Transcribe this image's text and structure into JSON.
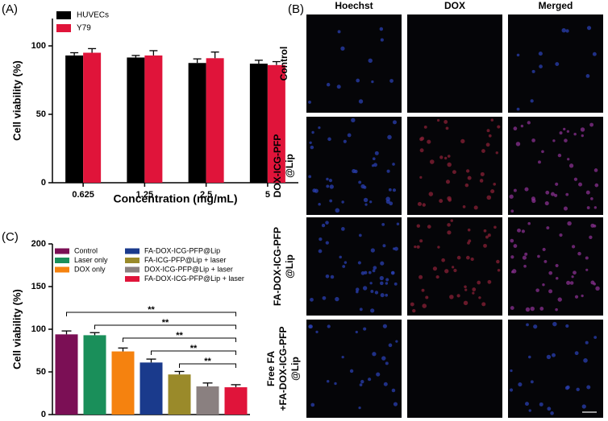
{
  "chart_data": [
    {
      "type": "grouped-bar",
      "panel_label": "(A)",
      "xlabel": "Concentration (mg/mL)",
      "ylabel": "Cell viability (%)",
      "categories": [
        "0.625",
        "1.25",
        "2.5",
        "5"
      ],
      "series": [
        {
          "name": "HUVECs",
          "color": "#000000",
          "values": [
            93,
            91.5,
            87.5,
            87
          ],
          "errors": [
            2,
            1.5,
            3,
            2.5
          ]
        },
        {
          "name": "Y79",
          "color": "#e0143a",
          "values": [
            95,
            93,
            91,
            86
          ],
          "errors": [
            3,
            3.5,
            4.5,
            2.5
          ]
        }
      ],
      "ylim": [
        0,
        120
      ],
      "yticks": [
        0,
        50,
        100
      ],
      "legend": "top-left"
    },
    {
      "type": "bar",
      "panel_label": "(C)",
      "ylabel": "Cell viability (%)",
      "categories": [
        "Control",
        "Laser only",
        "DOX only",
        "FA-DOX-ICG-PFP@Lip",
        "FA-ICG-PFP@Lip + laser",
        "DOX-ICG-PFP@Lip + laser",
        "FA-DOX-ICG-PFP@Lip + laser"
      ],
      "colors": [
        "#7b0f55",
        "#1a8f5a",
        "#f5820f",
        "#1a3a8c",
        "#9a8a2a",
        "#8a8080",
        "#e0143a"
      ],
      "values": [
        94,
        93,
        74,
        61,
        47,
        33,
        32
      ],
      "errors": [
        4,
        3,
        4,
        4,
        3.5,
        4,
        3
      ],
      "ylim": [
        0,
        200
      ],
      "yticks": [
        0,
        50,
        100,
        150,
        200
      ],
      "legend": "top",
      "significance": [
        {
          "between": [
            "Control",
            "FA-DOX-ICG-PFP@Lip + laser"
          ],
          "label": "**"
        },
        {
          "between": [
            "Laser only",
            "FA-DOX-ICG-PFP@Lip + laser"
          ],
          "label": "**"
        },
        {
          "between": [
            "DOX only",
            "FA-DOX-ICG-PFP@Lip + laser"
          ],
          "label": "**"
        },
        {
          "between": [
            "FA-DOX-ICG-PFP@Lip",
            "FA-DOX-ICG-PFP@Lip + laser"
          ],
          "label": "**"
        },
        {
          "between": [
            "FA-ICG-PFP@Lip + laser",
            "FA-DOX-ICG-PFP@Lip + laser"
          ],
          "label": "**"
        }
      ]
    }
  ],
  "panel_b": {
    "label": "(B)",
    "columns": [
      "Hoechst",
      "DOX",
      "Merged"
    ],
    "rows": [
      [
        "Control"
      ],
      [
        "DOX-ICG-PFP",
        "@Lip"
      ],
      [
        "FA-DOX-ICG-PFP",
        "@Lip"
      ],
      [
        "Free FA",
        "+FA-DOX-ICG-PFP",
        "@Lip"
      ]
    ]
  }
}
